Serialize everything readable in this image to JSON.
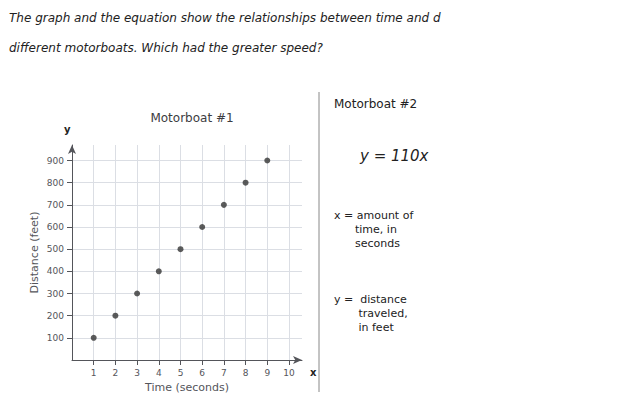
{
  "chart_data": {
    "type": "scatter",
    "title": "Motorboat #1",
    "x": [
      1,
      2,
      3,
      4,
      5,
      6,
      7,
      8,
      9
    ],
    "values": [
      100,
      200,
      300,
      400,
      500,
      600,
      700,
      800,
      900
    ],
    "x_label": "Time (seconds)",
    "y_label": "Distance (feet)",
    "xlim": [
      0,
      10.6
    ],
    "ylim": [
      0,
      970
    ],
    "xticks": [
      1,
      2,
      3,
      4,
      5,
      6,
      7,
      8,
      9,
      10
    ],
    "yticks": [
      100,
      200,
      300,
      400,
      500,
      600,
      700,
      800,
      900
    ],
    "grid": true,
    "color": "#333333",
    "annotations": [
      "The graph and the equation show the relationships between time and d",
      "different motorboats. Which had the greater speed?",
      "Motorboat #2",
      "y = 110x",
      "x = amount of\n      time, in\n      seconds",
      "y =  distance\n       traveled,\n       in feet",
      "y",
      "x"
    ]
  }
}
